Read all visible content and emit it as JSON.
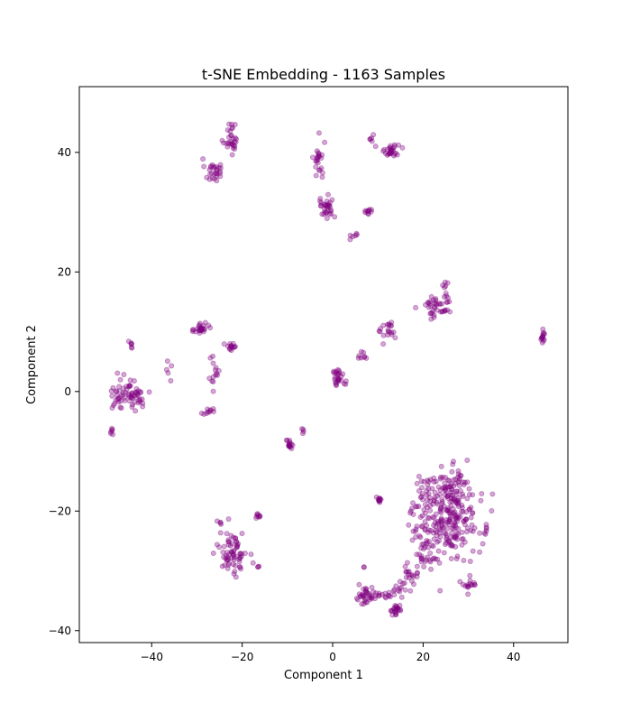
{
  "chart_data": {
    "type": "scatter",
    "title": "t-SNE Embedding - 1163 Samples",
    "xlabel": "Component 1",
    "ylabel": "Component 2",
    "xlim": [
      -56,
      52
    ],
    "ylim": [
      -42,
      51
    ],
    "xticks": [
      -40,
      -20,
      0,
      20,
      40
    ],
    "yticks": [
      -40,
      -20,
      0,
      20,
      40
    ],
    "grid": false,
    "point_color": "#800080",
    "point_alpha": 0.35,
    "n_points": 1163,
    "clusters": [
      {
        "center": [
          -22.5,
          42.5
        ],
        "spread": [
          1.2,
          2.0
        ],
        "count": 30
      },
      {
        "center": [
          -26.5,
          37.0
        ],
        "spread": [
          1.2,
          1.3
        ],
        "count": 28
      },
      {
        "center": [
          -3.0,
          38.5
        ],
        "spread": [
          0.8,
          2.5
        ],
        "count": 24
      },
      {
        "center": [
          -1.5,
          31.0
        ],
        "spread": [
          1.4,
          1.3
        ],
        "count": 32
      },
      {
        "center": [
          13.0,
          40.3
        ],
        "spread": [
          1.0,
          0.8
        ],
        "count": 28
      },
      {
        "center": [
          9.0,
          42.0
        ],
        "spread": [
          0.8,
          0.5
        ],
        "count": 6
      },
      {
        "center": [
          8.0,
          30.0
        ],
        "spread": [
          0.7,
          0.6
        ],
        "count": 10
      },
      {
        "center": [
          5.0,
          26.2
        ],
        "spread": [
          1.3,
          0.4
        ],
        "count": 6
      },
      {
        "center": [
          23.0,
          14.5
        ],
        "spread": [
          2.2,
          1.5
        ],
        "count": 42
      },
      {
        "center": [
          25.0,
          17.5
        ],
        "spread": [
          0.6,
          1.0
        ],
        "count": 6
      },
      {
        "center": [
          46.5,
          9.0
        ],
        "spread": [
          0.3,
          0.7
        ],
        "count": 14
      },
      {
        "center": [
          12.5,
          10.0
        ],
        "spread": [
          1.2,
          1.2
        ],
        "count": 20
      },
      {
        "center": [
          6.5,
          5.8
        ],
        "spread": [
          0.8,
          0.6
        ],
        "count": 8
      },
      {
        "center": [
          1.3,
          2.5
        ],
        "spread": [
          1.0,
          1.0
        ],
        "count": 28
      },
      {
        "center": [
          -29.0,
          10.5
        ],
        "spread": [
          1.0,
          0.7
        ],
        "count": 26
      },
      {
        "center": [
          -22.5,
          7.5
        ],
        "spread": [
          0.8,
          0.8
        ],
        "count": 14
      },
      {
        "center": [
          -26.0,
          3.5
        ],
        "spread": [
          0.9,
          3.0
        ],
        "count": 14
      },
      {
        "center": [
          -27.5,
          -3.3
        ],
        "spread": [
          1.2,
          0.4
        ],
        "count": 10
      },
      {
        "center": [
          -45.0,
          -0.5
        ],
        "spread": [
          3.2,
          1.7
        ],
        "count": 70
      },
      {
        "center": [
          -44.5,
          7.8
        ],
        "spread": [
          0.3,
          0.5
        ],
        "count": 6
      },
      {
        "center": [
          -48.8,
          -7.0
        ],
        "spread": [
          0.2,
          0.5
        ],
        "count": 6
      },
      {
        "center": [
          -36.5,
          2.0
        ],
        "spread": [
          1.2,
          3.0
        ],
        "count": 5
      },
      {
        "center": [
          -9.5,
          -9.0
        ],
        "spread": [
          0.5,
          0.6
        ],
        "count": 16
      },
      {
        "center": [
          -6.5,
          -6.2
        ],
        "spread": [
          0.4,
          0.6
        ],
        "count": 4
      },
      {
        "center": [
          10.3,
          -18.0
        ],
        "spread": [
          0.3,
          0.4
        ],
        "count": 12
      },
      {
        "center": [
          -25.0,
          -22.0
        ],
        "spread": [
          0.5,
          0.2
        ],
        "count": 4
      },
      {
        "center": [
          -22.0,
          -27.0
        ],
        "spread": [
          2.0,
          2.5
        ],
        "count": 70
      },
      {
        "center": [
          -16.5,
          -20.8
        ],
        "spread": [
          0.5,
          0.3
        ],
        "count": 8
      },
      {
        "center": [
          -16.5,
          -29.5
        ],
        "spread": [
          0.3,
          0.3
        ],
        "count": 3
      },
      {
        "center": [
          24.5,
          -21.0
        ],
        "spread": [
          5.0,
          5.0
        ],
        "count": 240
      },
      {
        "center": [
          27.0,
          -17.5
        ],
        "spread": [
          2.8,
          3.0
        ],
        "count": 70
      },
      {
        "center": [
          30.0,
          -32.5
        ],
        "spread": [
          1.2,
          0.8
        ],
        "count": 16
      },
      {
        "center": [
          34.0,
          -23.0
        ],
        "spread": [
          0.8,
          0.8
        ],
        "count": 6
      },
      {
        "center": [
          14.0,
          -36.5
        ],
        "spread": [
          1.0,
          0.6
        ],
        "count": 22
      },
      {
        "center": [
          11.5,
          -34.0
        ],
        "spread": [
          2.0,
          0.5
        ],
        "count": 18
      },
      {
        "center": [
          7.0,
          -34.5
        ],
        "spread": [
          1.2,
          1.2
        ],
        "count": 30
      },
      {
        "center": [
          17.0,
          -30.5
        ],
        "spread": [
          1.5,
          1.5
        ],
        "count": 18
      },
      {
        "center": [
          15.0,
          -33.0
        ],
        "spread": [
          1.0,
          0.7
        ],
        "count": 12
      },
      {
        "center": [
          20.0,
          -27.5
        ],
        "spread": [
          1.3,
          1.3
        ],
        "count": 16
      },
      {
        "center": [
          7.0,
          -29.5
        ],
        "spread": [
          0.2,
          0.2
        ],
        "count": 2
      }
    ]
  }
}
